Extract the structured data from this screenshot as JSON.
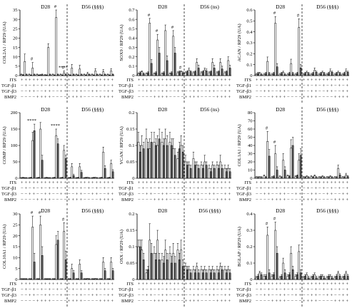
{
  "figure": {
    "conditions": [
      {
        "name": "ITS",
        "values": [
          "+",
          "+",
          "+",
          "+",
          "+",
          "+",
          "+",
          "+",
          "+",
          "+",
          "+",
          "+",
          "+",
          "+",
          "+",
          "+",
          "+",
          "+",
          "+",
          "+",
          "+",
          "+",
          "+",
          "+"
        ]
      },
      {
        "name": "TGF-β1",
        "values": [
          "−",
          "+",
          "−",
          "+",
          "−",
          "+",
          "−",
          "+",
          "−",
          "+",
          "−",
          "+",
          "−",
          "+",
          "−",
          "+",
          "−",
          "+",
          "−",
          "+",
          "−",
          "+",
          "−",
          "+"
        ]
      },
      {
        "name": "TGF-β3",
        "values": [
          "−",
          "−",
          "+",
          "+",
          "−",
          "−",
          "+",
          "+",
          "−",
          "−",
          "+",
          "+",
          "−",
          "−",
          "+",
          "+",
          "−",
          "−",
          "+",
          "+",
          "−",
          "−",
          "+",
          "+"
        ]
      },
      {
        "name": "BMP2",
        "values": [
          "−",
          "−",
          "−",
          "−",
          "+",
          "+",
          "+",
          "+",
          "−",
          "−",
          "−",
          "−",
          "+",
          "+",
          "+",
          "+",
          "−",
          "−",
          "−",
          "−",
          "+",
          "+",
          "+",
          "+"
        ]
      }
    ]
  },
  "chart_data": [
    {
      "type": "bar",
      "ylabel": "COL2A1 / RP29 (UA)",
      "ylim": [
        0,
        35
      ],
      "yticks": [
        0,
        5,
        10,
        15,
        20,
        25,
        30,
        35
      ],
      "stage_labels": [
        "D28",
        "D56 (§§§)"
      ],
      "series_colors": [
        "#ffffff",
        "#5c5c5c"
      ],
      "values": [
        0.5,
        0.3,
        7.5,
        0.5,
        0.5,
        0.2,
        4.0,
        0.5,
        0.5,
        0.2,
        0.3,
        0.5,
        0.3,
        0.2,
        15.0,
        0.5,
        0.5,
        0.2,
        31.0,
        0.5,
        0.5,
        0.2,
        1.5,
        0.5,
        0.5,
        0.2,
        4.0,
        0.5,
        0.5,
        0.2,
        3.5,
        0.5,
        0.5,
        0.2,
        1.0,
        0.5,
        0.5,
        0.2,
        2.5,
        0.5,
        0.5,
        0.2,
        2.0,
        0.5,
        0.5,
        0.2,
        2.5,
        0.5
      ],
      "errors": [
        0.3,
        0.2,
        4.0,
        0.3,
        0.3,
        0.2,
        3.0,
        0.3,
        0.3,
        0.2,
        0.3,
        0.3,
        0.3,
        0.2,
        2.0,
        0.3,
        0.3,
        0.2,
        4.0,
        0.3,
        0.3,
        0.2,
        1.0,
        0.3,
        0.3,
        0.2,
        2.0,
        0.3,
        0.3,
        0.2,
        2.0,
        0.3,
        0.3,
        0.2,
        0.8,
        0.3,
        0.3,
        0.2,
        1.2,
        0.3,
        0.3,
        0.2,
        1.2,
        0.3,
        0.3,
        0.2,
        1.2,
        0.3
      ],
      "annotations": [
        {
          "text": "#",
          "category": 1
        },
        {
          "text": "#",
          "category": 4
        },
        {
          "text": "#",
          "category": 5
        },
        {
          "text": "****",
          "category": 5
        }
      ]
    },
    {
      "type": "bar",
      "ylabel": "SOX9 / RP29 (UA)",
      "ylim": [
        0,
        0.7
      ],
      "yticks": [
        0,
        0.1,
        0.2,
        0.3,
        0.4,
        0.5,
        0.6,
        0.7
      ],
      "stage_labels": [
        "D28",
        "D56 (ns)"
      ],
      "series_colors": [
        "#ffffff",
        "#5c5c5c"
      ],
      "values": [
        0.02,
        0.03,
        0.04,
        0.02,
        0.02,
        0.03,
        0.56,
        0.13,
        0.02,
        0.03,
        0.38,
        0.24,
        0.02,
        0.03,
        0.48,
        0.16,
        0.02,
        0.03,
        0.42,
        0.24,
        0.03,
        0.04,
        0.04,
        0.03,
        0.03,
        0.04,
        0.06,
        0.04,
        0.03,
        0.04,
        0.14,
        0.08,
        0.03,
        0.04,
        0.06,
        0.05,
        0.03,
        0.04,
        0.14,
        0.08,
        0.03,
        0.04,
        0.14,
        0.07,
        0.03,
        0.04,
        0.16,
        0.08
      ],
      "errors": [
        0.01,
        0.01,
        0.01,
        0.01,
        0.01,
        0.01,
        0.05,
        0.04,
        0.01,
        0.01,
        0.06,
        0.06,
        0.01,
        0.01,
        0.06,
        0.05,
        0.01,
        0.01,
        0.06,
        0.06,
        0.01,
        0.01,
        0.01,
        0.01,
        0.01,
        0.01,
        0.02,
        0.01,
        0.01,
        0.01,
        0.04,
        0.03,
        0.01,
        0.01,
        0.02,
        0.02,
        0.01,
        0.01,
        0.04,
        0.03,
        0.01,
        0.01,
        0.04,
        0.03,
        0.01,
        0.01,
        0.04,
        0.03
      ],
      "annotations": [
        {
          "text": "#",
          "category": 1
        },
        {
          "text": "#",
          "category": 2
        },
        {
          "text": "#",
          "category": 4
        },
        {
          "text": "#",
          "category": 5
        }
      ]
    },
    {
      "type": "bar",
      "ylabel": "ACAN / RP29 (UA)",
      "ylim": [
        0,
        0.6
      ],
      "yticks": [
        0,
        0.1,
        0.2,
        0.3,
        0.4,
        0.5,
        0.6
      ],
      "stage_labels": [
        "D28",
        "D56 (§§§)"
      ],
      "series_colors": [
        "#ffffff",
        "#5c5c5c"
      ],
      "values": [
        0.01,
        0.02,
        0.02,
        0.01,
        0.01,
        0.02,
        0.13,
        0.02,
        0.01,
        0.02,
        0.48,
        0.08,
        0.01,
        0.02,
        0.03,
        0.01,
        0.01,
        0.02,
        0.11,
        0.02,
        0.01,
        0.02,
        0.44,
        0.07,
        0.01,
        0.02,
        0.03,
        0.02,
        0.01,
        0.02,
        0.05,
        0.03,
        0.01,
        0.02,
        0.03,
        0.02,
        0.01,
        0.02,
        0.04,
        0.03,
        0.01,
        0.02,
        0.03,
        0.02,
        0.01,
        0.02,
        0.04,
        0.03
      ],
      "errors": [
        0.01,
        0.01,
        0.01,
        0.01,
        0.01,
        0.01,
        0.04,
        0.01,
        0.01,
        0.01,
        0.06,
        0.03,
        0.01,
        0.01,
        0.01,
        0.01,
        0.01,
        0.01,
        0.04,
        0.01,
        0.01,
        0.01,
        0.08,
        0.03,
        0.01,
        0.01,
        0.01,
        0.01,
        0.01,
        0.01,
        0.02,
        0.01,
        0.01,
        0.01,
        0.01,
        0.01,
        0.01,
        0.01,
        0.02,
        0.01,
        0.01,
        0.01,
        0.01,
        0.01,
        0.01,
        0.01,
        0.02,
        0.01
      ],
      "annotations": [
        {
          "text": "#",
          "category": 2
        },
        {
          "text": "#",
          "category": 5
        }
      ]
    },
    {
      "type": "bar",
      "ylabel": "COMP / RP29 (UA)",
      "ylim": [
        0,
        200
      ],
      "yticks": [
        0,
        50,
        100,
        150,
        200
      ],
      "stage_labels": [
        "D28",
        "D56 (§§§)"
      ],
      "series_colors": [
        "#ffffff",
        "#5c5c5c"
      ],
      "values": [
        1,
        2,
        1,
        1,
        1,
        2,
        115,
        145,
        1,
        2,
        150,
        55,
        1,
        2,
        1,
        1,
        1,
        2,
        130,
        105,
        1,
        2,
        85,
        60,
        1,
        2,
        35,
        8,
        1,
        2,
        35,
        18,
        1,
        2,
        2,
        1,
        1,
        2,
        2,
        1,
        1,
        2,
        80,
        30,
        1,
        2,
        45,
        20
      ],
      "errors": [
        1,
        1,
        1,
        1,
        1,
        1,
        25,
        20,
        1,
        1,
        20,
        15,
        1,
        1,
        1,
        1,
        1,
        1,
        20,
        15,
        1,
        1,
        15,
        10,
        1,
        1,
        10,
        4,
        1,
        1,
        10,
        6,
        1,
        1,
        1,
        1,
        1,
        1,
        1,
        1,
        1,
        1,
        15,
        8,
        1,
        1,
        10,
        6
      ],
      "annotations": [
        {
          "text": "****",
          "category": 1
        },
        {
          "text": "****",
          "category": 4
        }
      ]
    },
    {
      "type": "bar",
      "ylabel": "VCAN / RP29 (UA)",
      "ylim": [
        0,
        0.2
      ],
      "yticks": [
        0,
        0.05,
        0.1,
        0.15,
        0.2
      ],
      "stage_labels": [
        "D28",
        "D56 (ns)"
      ],
      "series_colors": [
        "#ffffff",
        "#5c5c5c"
      ],
      "values": [
        0.11,
        0.08,
        0.1,
        0.09,
        0.12,
        0.09,
        0.09,
        0.11,
        0.11,
        0.1,
        0.1,
        0.12,
        0.11,
        0.1,
        0.12,
        0.1,
        0.11,
        0.1,
        0.09,
        0.07,
        0.06,
        0.09,
        0.1,
        0.08,
        0.05,
        0.04,
        0.04,
        0.03,
        0.06,
        0.04,
        0.04,
        0.03,
        0.04,
        0.03,
        0.05,
        0.04,
        0.03,
        0.02,
        0.04,
        0.03,
        0.04,
        0.03,
        0.05,
        0.03,
        0.03,
        0.02,
        0.03,
        0.02
      ],
      "errors": [
        0.03,
        0.02,
        0.03,
        0.02,
        0.03,
        0.02,
        0.03,
        0.03,
        0.03,
        0.02,
        0.03,
        0.03,
        0.03,
        0.02,
        0.03,
        0.03,
        0.03,
        0.02,
        0.03,
        0.02,
        0.02,
        0.02,
        0.03,
        0.02,
        0.02,
        0.01,
        0.01,
        0.01,
        0.02,
        0.01,
        0.01,
        0.01,
        0.01,
        0.01,
        0.02,
        0.01,
        0.01,
        0.01,
        0.01,
        0.01,
        0.01,
        0.01,
        0.02,
        0.01,
        0.01,
        0.01,
        0.01,
        0.01
      ],
      "annotations": []
    },
    {
      "type": "bar",
      "ylabel": "COL1A1 / RP29 (UA)",
      "ylim": [
        0,
        80
      ],
      "yticks": [
        0,
        10,
        20,
        30,
        40,
        50,
        60,
        70,
        80
      ],
      "stage_labels": [
        "D28",
        "D56 (§§§)"
      ],
      "series_colors": [
        "#ffffff",
        "#5c5c5c"
      ],
      "values": [
        1,
        1,
        1,
        1,
        3,
        1,
        45,
        27,
        1,
        2,
        30,
        10,
        2,
        1,
        22,
        10,
        3,
        2,
        37,
        40,
        2,
        3,
        22,
        28,
        1,
        1,
        2,
        1,
        2,
        1,
        3,
        1,
        1,
        1,
        2,
        1,
        1,
        1,
        2,
        1,
        1,
        1,
        12,
        4,
        1,
        1,
        4,
        2
      ],
      "errors": [
        1,
        1,
        1,
        1,
        1,
        1,
        12,
        8,
        1,
        1,
        10,
        4,
        1,
        1,
        8,
        4,
        1,
        1,
        10,
        10,
        1,
        1,
        8,
        8,
        1,
        1,
        1,
        1,
        1,
        1,
        1,
        1,
        1,
        1,
        1,
        1,
        1,
        1,
        1,
        1,
        1,
        1,
        4,
        2,
        1,
        1,
        2,
        1
      ],
      "annotations": [
        {
          "text": "#",
          "category": 1
        },
        {
          "text": "#",
          "category": 2
        }
      ]
    },
    {
      "type": "bar",
      "ylabel": "COL10A1 / RP29 (UA)",
      "ylim": [
        0,
        30
      ],
      "yticks": [
        0,
        5,
        10,
        15,
        20,
        25,
        30
      ],
      "stage_labels": [
        "D28",
        "D56 (§§§)"
      ],
      "series_colors": [
        "#ffffff",
        "#5c5c5c"
      ],
      "values": [
        0.2,
        0.2,
        0.2,
        0.2,
        0.2,
        0.2,
        24,
        8,
        0.2,
        0.2,
        25,
        11,
        0.2,
        0.2,
        0.2,
        0.2,
        0.2,
        0.2,
        16,
        18,
        0.2,
        0.2,
        22,
        9,
        0.2,
        0.2,
        5,
        3,
        0.2,
        0.2,
        7,
        3,
        0.2,
        0.2,
        0.3,
        0.2,
        0.2,
        0.2,
        0.3,
        0.2,
        0.2,
        0.2,
        8,
        4,
        0.2,
        0.2,
        8,
        4
      ],
      "errors": [
        0.2,
        0.2,
        0.2,
        0.2,
        0.2,
        0.2,
        5,
        4,
        0.2,
        0.2,
        4,
        4,
        0.2,
        0.2,
        0.2,
        0.2,
        0.2,
        0.2,
        4,
        4,
        0.2,
        0.2,
        4,
        4,
        0.2,
        0.2,
        2,
        1,
        0.2,
        0.2,
        2,
        1,
        0.2,
        0.2,
        0.2,
        0.2,
        0.2,
        0.2,
        0.2,
        0.2,
        0.2,
        0.2,
        2,
        1,
        0.2,
        0.2,
        2,
        1
      ],
      "annotations": [
        {
          "text": "#",
          "category": 1
        },
        {
          "text": "#",
          "category": 2
        },
        {
          "text": "#",
          "category": 5
        }
      ]
    },
    {
      "type": "bar",
      "ylabel": "OSX / RP29 (UA)",
      "ylim": [
        0,
        0.2
      ],
      "yticks": [
        0,
        0.05,
        0.1,
        0.15,
        0.2
      ],
      "stage_labels": [
        "D28",
        "D56 (§§§)"
      ],
      "series_colors": [
        "#ffffff",
        "#5c5c5c"
      ],
      "values": [
        0.1,
        0.1,
        0.09,
        0.06,
        0.02,
        0.03,
        0.12,
        0.08,
        0.08,
        0.06,
        0.12,
        0.06,
        0.06,
        0.05,
        0.09,
        0.06,
        0.08,
        0.05,
        0.08,
        0.05,
        0.09,
        0.06,
        0.09,
        0.04,
        0.04,
        0.03,
        0.03,
        0.02,
        0.03,
        0.02,
        0.04,
        0.02,
        0.03,
        0.02,
        0.03,
        0.02,
        0.03,
        0.02,
        0.03,
        0.02,
        0.03,
        0.02,
        0.04,
        0.03,
        0.03,
        0.02,
        0.03,
        0.02
      ],
      "errors": [
        0.02,
        0.02,
        0.03,
        0.02,
        0.01,
        0.01,
        0.05,
        0.03,
        0.02,
        0.02,
        0.03,
        0.02,
        0.02,
        0.02,
        0.03,
        0.02,
        0.02,
        0.02,
        0.03,
        0.02,
        0.02,
        0.02,
        0.03,
        0.02,
        0.01,
        0.01,
        0.01,
        0.01,
        0.01,
        0.01,
        0.01,
        0.01,
        0.01,
        0.01,
        0.01,
        0.01,
        0.01,
        0.01,
        0.01,
        0.01,
        0.01,
        0.01,
        0.01,
        0.01,
        0.01,
        0.01,
        0.01,
        0.01
      ],
      "annotations": []
    },
    {
      "type": "bar",
      "ylabel": "BGLAP / RP29 (UA)",
      "ylim": [
        0,
        0.4
      ],
      "yticks": [
        0,
        0.1,
        0.2,
        0.3,
        0.4
      ],
      "stage_labels": [
        "D28",
        "D56 (§§§)"
      ],
      "series_colors": [
        "#ffffff",
        "#5c5c5c"
      ],
      "values": [
        0.01,
        0.02,
        0.04,
        0.03,
        0.02,
        0.02,
        0.27,
        0.04,
        0.02,
        0.03,
        0.3,
        0.16,
        0.01,
        0.02,
        0.1,
        0.04,
        0.02,
        0.03,
        0.16,
        0.06,
        0.02,
        0.03,
        0.17,
        0.04,
        0.01,
        0.02,
        0.03,
        0.01,
        0.01,
        0.02,
        0.03,
        0.01,
        0.01,
        0.02,
        0.02,
        0.01,
        0.01,
        0.02,
        0.02,
        0.01,
        0.01,
        0.02,
        0.04,
        0.02,
        0.01,
        0.02,
        0.04,
        0.02
      ],
      "errors": [
        0.01,
        0.01,
        0.01,
        0.01,
        0.01,
        0.01,
        0.05,
        0.02,
        0.01,
        0.01,
        0.05,
        0.04,
        0.01,
        0.01,
        0.03,
        0.02,
        0.01,
        0.01,
        0.04,
        0.02,
        0.01,
        0.01,
        0.04,
        0.02,
        0.01,
        0.01,
        0.01,
        0.01,
        0.01,
        0.01,
        0.01,
        0.01,
        0.01,
        0.01,
        0.01,
        0.01,
        0.01,
        0.01,
        0.01,
        0.01,
        0.01,
        0.01,
        0.01,
        0.01,
        0.01,
        0.01,
        0.01,
        0.01
      ],
      "annotations": [
        {
          "text": "#",
          "category": 1
        },
        {
          "text": "#",
          "category": 2
        }
      ]
    }
  ]
}
